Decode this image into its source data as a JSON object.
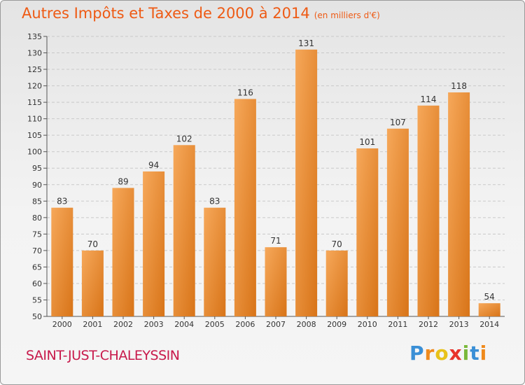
{
  "header": {
    "title": "Autres Impôts et Taxes de 2000 à 2014",
    "subtitle": "(en milliers d'€)"
  },
  "footer": {
    "commune": "SAINT-JUST-CHALEYSSIN",
    "logo_letters": [
      "P",
      "r",
      "o",
      "x",
      "i",
      "t",
      "i"
    ],
    "logo_colors": [
      "#3a8fd6",
      "#ef8a1c",
      "#e8c21a",
      "#e8322a",
      "#7ab83a",
      "#3a8fd6",
      "#ef8a1c"
    ]
  },
  "colors": {
    "title": "#ee5a14",
    "commune": "#c8194b",
    "bar_light": "#f6a85a",
    "bar_dark": "#d87418",
    "grid": "#c9c9c9"
  },
  "chart_data": {
    "type": "bar",
    "categories": [
      "2000",
      "2001",
      "2002",
      "2003",
      "2004",
      "2005",
      "2006",
      "2007",
      "2008",
      "2009",
      "2010",
      "2011",
      "2012",
      "2013",
      "2014"
    ],
    "values": [
      83,
      70,
      89,
      94,
      102,
      83,
      116,
      71,
      131,
      70,
      101,
      107,
      114,
      118,
      54
    ],
    "ylim": [
      50,
      135
    ],
    "yticks": [
      50,
      55,
      60,
      65,
      70,
      75,
      80,
      85,
      90,
      95,
      100,
      105,
      110,
      115,
      120,
      125,
      130,
      135
    ],
    "grid": "horizontal dashed",
    "legend": "none"
  }
}
